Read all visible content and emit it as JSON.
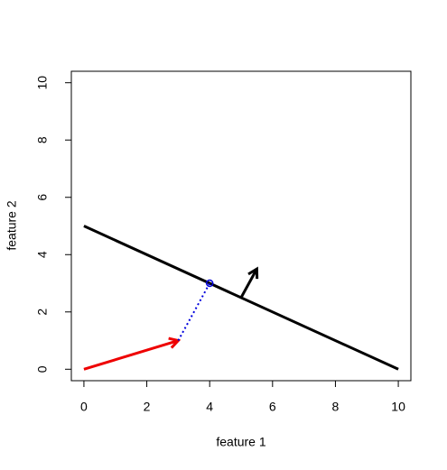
{
  "chart_data": {
    "type": "line",
    "x_label": "feature 1",
    "y_label": "feature 2",
    "xlim": [
      -0.4,
      10.4
    ],
    "ylim": [
      -0.4,
      10.4
    ],
    "xticks": [
      0,
      2,
      4,
      6,
      8,
      10
    ],
    "yticks": [
      0,
      2,
      4,
      6,
      8,
      10
    ],
    "series": [
      {
        "color": "#000000",
        "x": [
          0,
          10
        ],
        "values": [
          5,
          0
        ],
        "linestyle": "solid",
        "arrow": false
      },
      {
        "color": "#ee0000",
        "x": [
          0,
          3
        ],
        "values": [
          0,
          1
        ],
        "linestyle": "solid",
        "arrow": true
      },
      {
        "color": "#0000dd",
        "x": [
          3,
          4
        ],
        "values": [
          1,
          3
        ],
        "linestyle": "dotted",
        "arrow": false
      },
      {
        "color": "#000000",
        "x": [
          5,
          5.5
        ],
        "values": [
          2.5,
          3.5
        ],
        "linestyle": "solid",
        "arrow": true
      }
    ],
    "points": {
      "color": "#0000dd",
      "x": [
        4
      ],
      "values": [
        3
      ]
    }
  }
}
